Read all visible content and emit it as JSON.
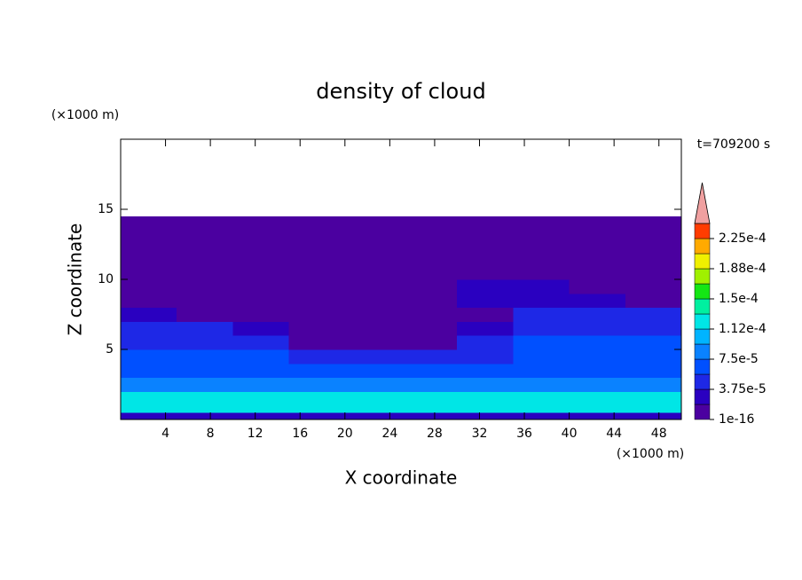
{
  "chart_data": {
    "type": "contour",
    "title": "density of cloud",
    "xlabel": "X coordinate",
    "ylabel": "Z coordinate",
    "x_unit": "(×1000 m)",
    "y_unit": "(×1000 m)",
    "time_label": "t=709200 s",
    "xlim": [
      0,
      50
    ],
    "ylim": [
      0,
      20
    ],
    "xticks": [
      4,
      8,
      12,
      16,
      20,
      24,
      28,
      32,
      36,
      40,
      44,
      48
    ],
    "yticks": [
      5,
      10,
      15
    ],
    "x_edges": [
      0,
      5,
      10,
      15,
      20,
      25,
      30,
      35,
      40,
      45,
      50
    ],
    "y_edges": [
      0,
      0.5,
      1,
      2,
      3,
      4,
      5,
      6,
      7,
      8,
      9,
      10,
      14.5
    ],
    "z": [
      [
        2e-05,
        2e-05,
        2e-05,
        2e-05,
        2e-05,
        2e-05,
        2e-05,
        2e-05,
        2e-05,
        2e-05
      ],
      [
        0.00013,
        0.00013,
        0.00013,
        0.00013,
        0.00013,
        0.00013,
        0.00013,
        0.00013,
        0.00013,
        0.00013
      ],
      [
        0.000115,
        0.000115,
        0.000115,
        0.000115,
        0.000115,
        0.000115,
        0.000115,
        0.000115,
        0.000115,
        0.000115
      ],
      [
        9e-05,
        9e-05,
        9e-05,
        9e-05,
        9e-05,
        9e-05,
        9e-05,
        9e-05,
        9e-05,
        9e-05
      ],
      [
        7e-05,
        7e-05,
        7e-05,
        7e-05,
        7e-05,
        7e-05,
        7e-05,
        7e-05,
        7e-05,
        7e-05
      ],
      [
        6e-05,
        6e-05,
        6e-05,
        5e-05,
        4e-05,
        4e-05,
        5e-05,
        6e-05,
        6e-05,
        6e-05
      ],
      [
        5e-05,
        5e-05,
        4e-05,
        1e-16,
        1e-16,
        1e-16,
        5e-05,
        6e-05,
        6e-05,
        6e-05
      ],
      [
        4e-05,
        4e-05,
        3e-05,
        1e-16,
        1e-16,
        1e-16,
        3e-05,
        5e-05,
        5e-05,
        5e-05
      ],
      [
        3e-05,
        1e-16,
        1e-16,
        1e-16,
        1e-16,
        1e-16,
        1e-16,
        4e-05,
        4e-05,
        4e-05
      ],
      [
        1e-16,
        1e-16,
        1e-16,
        1e-16,
        1e-16,
        1e-16,
        3e-05,
        3e-05,
        2e-05,
        1e-16
      ],
      [
        1e-16,
        1e-16,
        1e-16,
        1e-16,
        1e-16,
        1e-16,
        2e-05,
        2e-05,
        1e-16,
        1e-16
      ],
      [
        1e-16,
        1e-16,
        1e-16,
        1e-16,
        1e-16,
        1e-16,
        1e-16,
        1e-16,
        1e-16,
        1e-16
      ]
    ],
    "levels": [
      1e-16,
      1.875e-05,
      3.75e-05,
      5.625e-05,
      7.5e-05,
      9.375e-05,
      0.0001125,
      0.00013125,
      0.00015,
      0.00016875,
      0.0001875,
      0.00020625,
      0.000225,
      0.00024375
    ],
    "colors": [
      "#4b00a0",
      "#2a00c0",
      "#1e28e6",
      "#0050ff",
      "#0a82ff",
      "#00b4ff",
      "#00e6e6",
      "#00f0a0",
      "#14e614",
      "#a0f000",
      "#f0f000",
      "#ffaa00",
      "#ff3c00"
    ],
    "extend_color": "#f0a0a0",
    "colorbar_ticks": [
      {
        "value": 1e-16,
        "label": "1e-16"
      },
      {
        "value": 3.75e-05,
        "label": "3.75e-5"
      },
      {
        "value": 7.5e-05,
        "label": "7.5e-5"
      },
      {
        "value": 0.0001125,
        "label": "1.12e-4"
      },
      {
        "value": 0.00015,
        "label": "1.5e-4"
      },
      {
        "value": 0.0001875,
        "label": "1.88e-4"
      },
      {
        "value": 0.000225,
        "label": "2.25e-4"
      }
    ]
  }
}
